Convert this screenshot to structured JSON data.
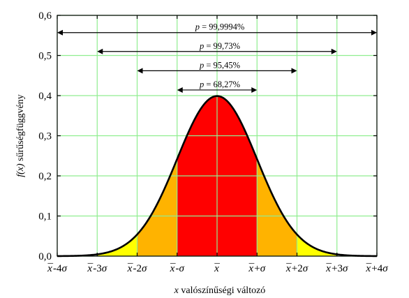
{
  "chart_data": {
    "type": "area",
    "title": "",
    "xlabel": "x valószínűségi változó",
    "ylabel": "f(x) sűrűségfüggvény",
    "xlim": [
      -4,
      4
    ],
    "ylim": [
      0,
      0.6
    ],
    "grid": true,
    "x_ticks": [
      {
        "value": -4,
        "label": "x̄-4σ"
      },
      {
        "value": -3,
        "label": "x̄-3σ"
      },
      {
        "value": -2,
        "label": "x̄-2σ"
      },
      {
        "value": -1,
        "label": "x̄-σ"
      },
      {
        "value": 0,
        "label": "x̄"
      },
      {
        "value": 1,
        "label": "x̄+σ"
      },
      {
        "value": 2,
        "label": "x̄+2σ"
      },
      {
        "value": 3,
        "label": "x̄+3σ"
      },
      {
        "value": 4,
        "label": "x̄+4σ"
      }
    ],
    "y_ticks": [
      {
        "value": 0,
        "label": "0,0"
      },
      {
        "value": 0.1,
        "label": "0,1"
      },
      {
        "value": 0.2,
        "label": "0,2"
      },
      {
        "value": 0.3,
        "label": "0,3"
      },
      {
        "value": 0.4,
        "label": "0,4"
      },
      {
        "value": 0.5,
        "label": "0,5"
      },
      {
        "value": 0.6,
        "label": "0,6"
      }
    ],
    "curve": {
      "distribution": "standard normal",
      "mean": 0,
      "sd": 1,
      "peak": 0.399
    },
    "bands": [
      {
        "from": -1,
        "to": 1,
        "color": "#ff0000"
      },
      {
        "from": -2,
        "to": -1,
        "color": "#ffb300"
      },
      {
        "from": 1,
        "to": 2,
        "color": "#ffb300"
      },
      {
        "from": -3,
        "to": -2,
        "color": "#ffff00"
      },
      {
        "from": 2,
        "to": 3,
        "color": "#ffff00"
      }
    ],
    "intervals": [
      {
        "k": 4,
        "y": 0.557,
        "label": "p = 99,9994%"
      },
      {
        "k": 3,
        "y": 0.51,
        "label": "p = 99,73%"
      },
      {
        "k": 2,
        "y": 0.462,
        "label": "p = 95,45%"
      },
      {
        "k": 1,
        "y": 0.414,
        "label": "p = 68,27%"
      }
    ],
    "colors": {
      "grid": "#90ee90",
      "curve": "#000000",
      "axis": "#000000"
    }
  }
}
